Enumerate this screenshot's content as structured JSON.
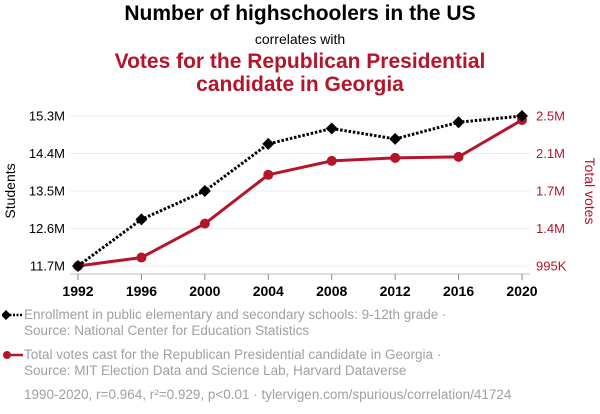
{
  "header": {
    "title": "Number of highschoolers in the US",
    "subtitle": "correlates with",
    "title2_line1": "Votes for the Republican Presidential",
    "title2_line2": "candidate in Georgia"
  },
  "colors": {
    "students": "#000000",
    "votes": "#b5152b",
    "grid": "#eeeeee",
    "legend_text": "#a0a0a0"
  },
  "legend": {
    "students_line1": "Enrollment in public elementary and secondary schools: 9-12th grade ·",
    "students_line2": "Source: National Center for Education Statistics",
    "votes_line1": "Total votes cast for the Republican Presidential candidate in Georgia ·",
    "votes_line2": "Source: MIT Election Data and Science Lab, Harvard Dataverse",
    "footer": "1990-2020, r=0.964, r²=0.929, p<0.01 · tylervigen.com/spurious/correlation/41724"
  },
  "chart_data": {
    "type": "line",
    "title": "Number of highschoolers in the US correlates with Votes for the Republican Presidential candidate in Georgia",
    "x": [
      1992,
      1996,
      2000,
      2004,
      2008,
      2012,
      2016,
      2020
    ],
    "xlabel": "",
    "x_ticks": [
      "1992",
      "1996",
      "2000",
      "2004",
      "2008",
      "2012",
      "2016",
      "2020"
    ],
    "left_axis": {
      "label": "Students",
      "ylim": [
        11700000,
        15300000
      ],
      "ticks": [
        "11.7M",
        "12.6M",
        "13.5M",
        "14.4M",
        "15.3M"
      ],
      "tick_values": [
        11700000,
        12600000,
        13500000,
        14400000,
        15300000
      ]
    },
    "right_axis": {
      "label": "Total votes",
      "ylim": [
        995000,
        2500000
      ],
      "ticks": [
        "995K",
        "1.4M",
        "1.7M",
        "2.1M",
        "2.5M"
      ],
      "tick_values": [
        995000,
        1371250,
        1747500,
        2123750,
        2500000
      ]
    },
    "series": [
      {
        "name": "Students",
        "axis": "left",
        "style": "dotted-diamond",
        "color": "#000000",
        "values": [
          11700000,
          12820000,
          13500000,
          14630000,
          15000000,
          14750000,
          15150000,
          15300000
        ]
      },
      {
        "name": "Total votes",
        "axis": "right",
        "style": "solid-circle",
        "color": "#b5152b",
        "values": [
          995000,
          1080000,
          1420000,
          1910000,
          2050000,
          2080000,
          2090000,
          2460000
        ]
      }
    ],
    "grid": true,
    "legend_position": "bottom-left"
  }
}
